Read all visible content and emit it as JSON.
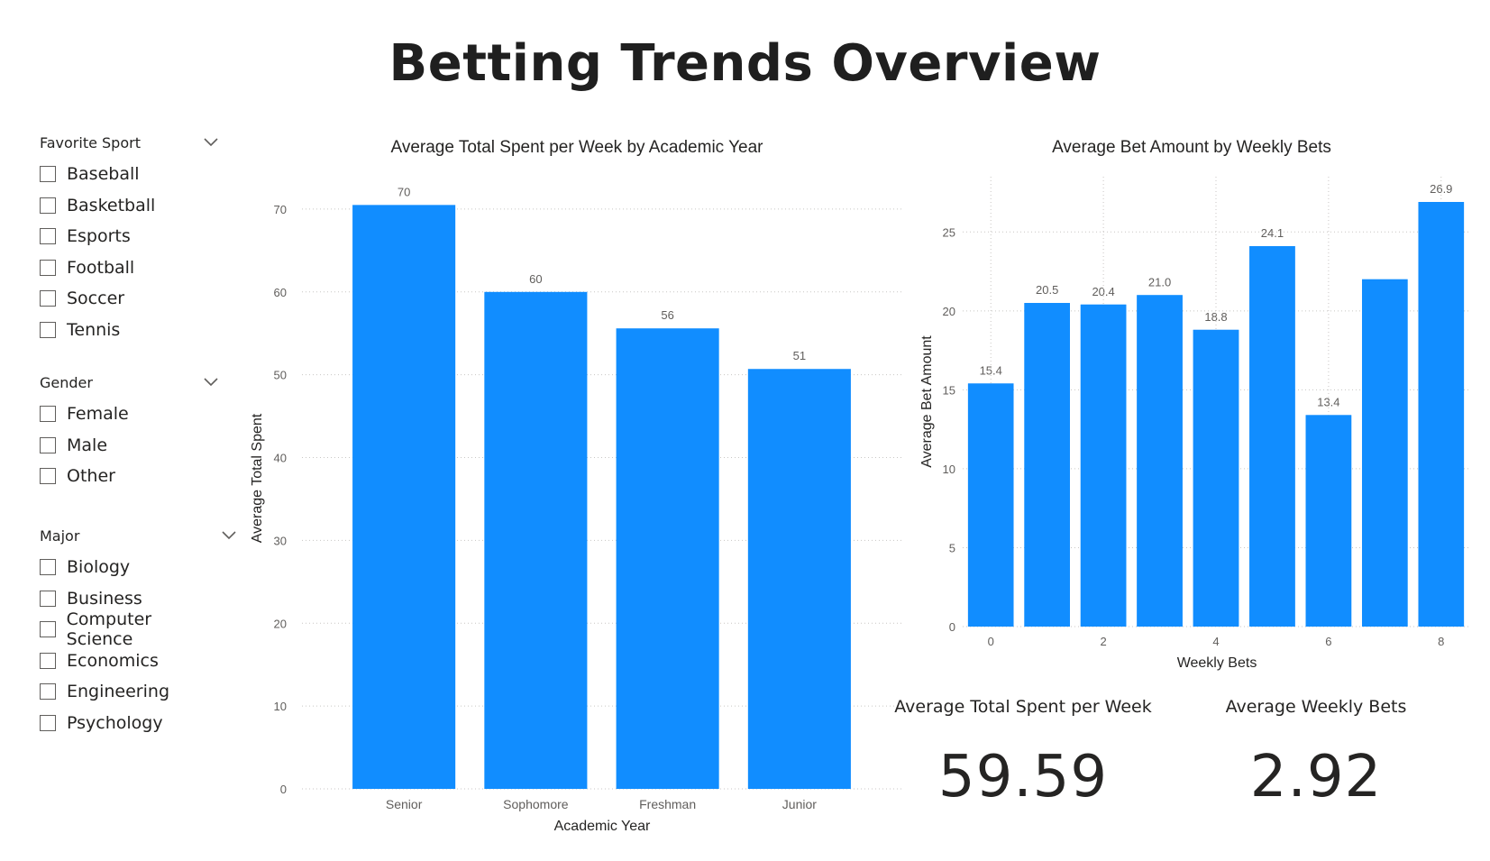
{
  "page_title": "Betting Trends Overview",
  "slicers": [
    {
      "title": "Favorite Sport",
      "items": [
        "Baseball",
        "Basketball",
        "Esports",
        "Football",
        "Soccer",
        "Tennis"
      ]
    },
    {
      "title": "Gender",
      "items": [
        "Female",
        "Male",
        "Other"
      ]
    },
    {
      "title": "Major",
      "items": [
        "Biology",
        "Business",
        "Computer Science",
        "Economics",
        "Engineering",
        "Psychology"
      ]
    }
  ],
  "chart_data": [
    {
      "type": "bar",
      "title": "Average Total Spent per Week by Academic Year",
      "xlabel": "Academic Year",
      "ylabel": "Average Total Spent",
      "categories": [
        "Senior",
        "Sophomore",
        "Freshman",
        "Junior"
      ],
      "values": [
        70.5,
        60,
        55.6,
        50.7
      ],
      "data_labels": [
        "70",
        "60",
        "56",
        "51"
      ],
      "ylim": [
        0,
        75
      ],
      "yticks": [
        0,
        10,
        20,
        30,
        40,
        50,
        60,
        70
      ],
      "grid": true,
      "color": "#118DFF"
    },
    {
      "type": "bar",
      "title": "Average Bet Amount by Weekly Bets",
      "xlabel": "Weekly Bets",
      "ylabel": "Average Bet Amount",
      "x": [
        0,
        1,
        2,
        3,
        4,
        5,
        6,
        7,
        8
      ],
      "values": [
        15.4,
        20.5,
        20.4,
        21.0,
        18.8,
        24.1,
        13.4,
        22.0,
        26.9
      ],
      "data_labels": [
        "15.4",
        "20.5",
        "20.4",
        "21.0",
        "18.8",
        "24.1",
        "13.4",
        "",
        "26.9"
      ],
      "xticks": [
        0,
        2,
        4,
        6,
        8
      ],
      "yticks": [
        0,
        5,
        10,
        15,
        20,
        25
      ],
      "ylim": [
        0,
        28.5
      ],
      "grid": true,
      "color": "#118DFF"
    }
  ],
  "cards": [
    {
      "label": "Average Total Spent per Week",
      "value": "59.59"
    },
    {
      "label": "Average Weekly Bets",
      "value": "2.92"
    }
  ],
  "icons": {
    "slicer_toggle": "chevron-down-icon"
  }
}
